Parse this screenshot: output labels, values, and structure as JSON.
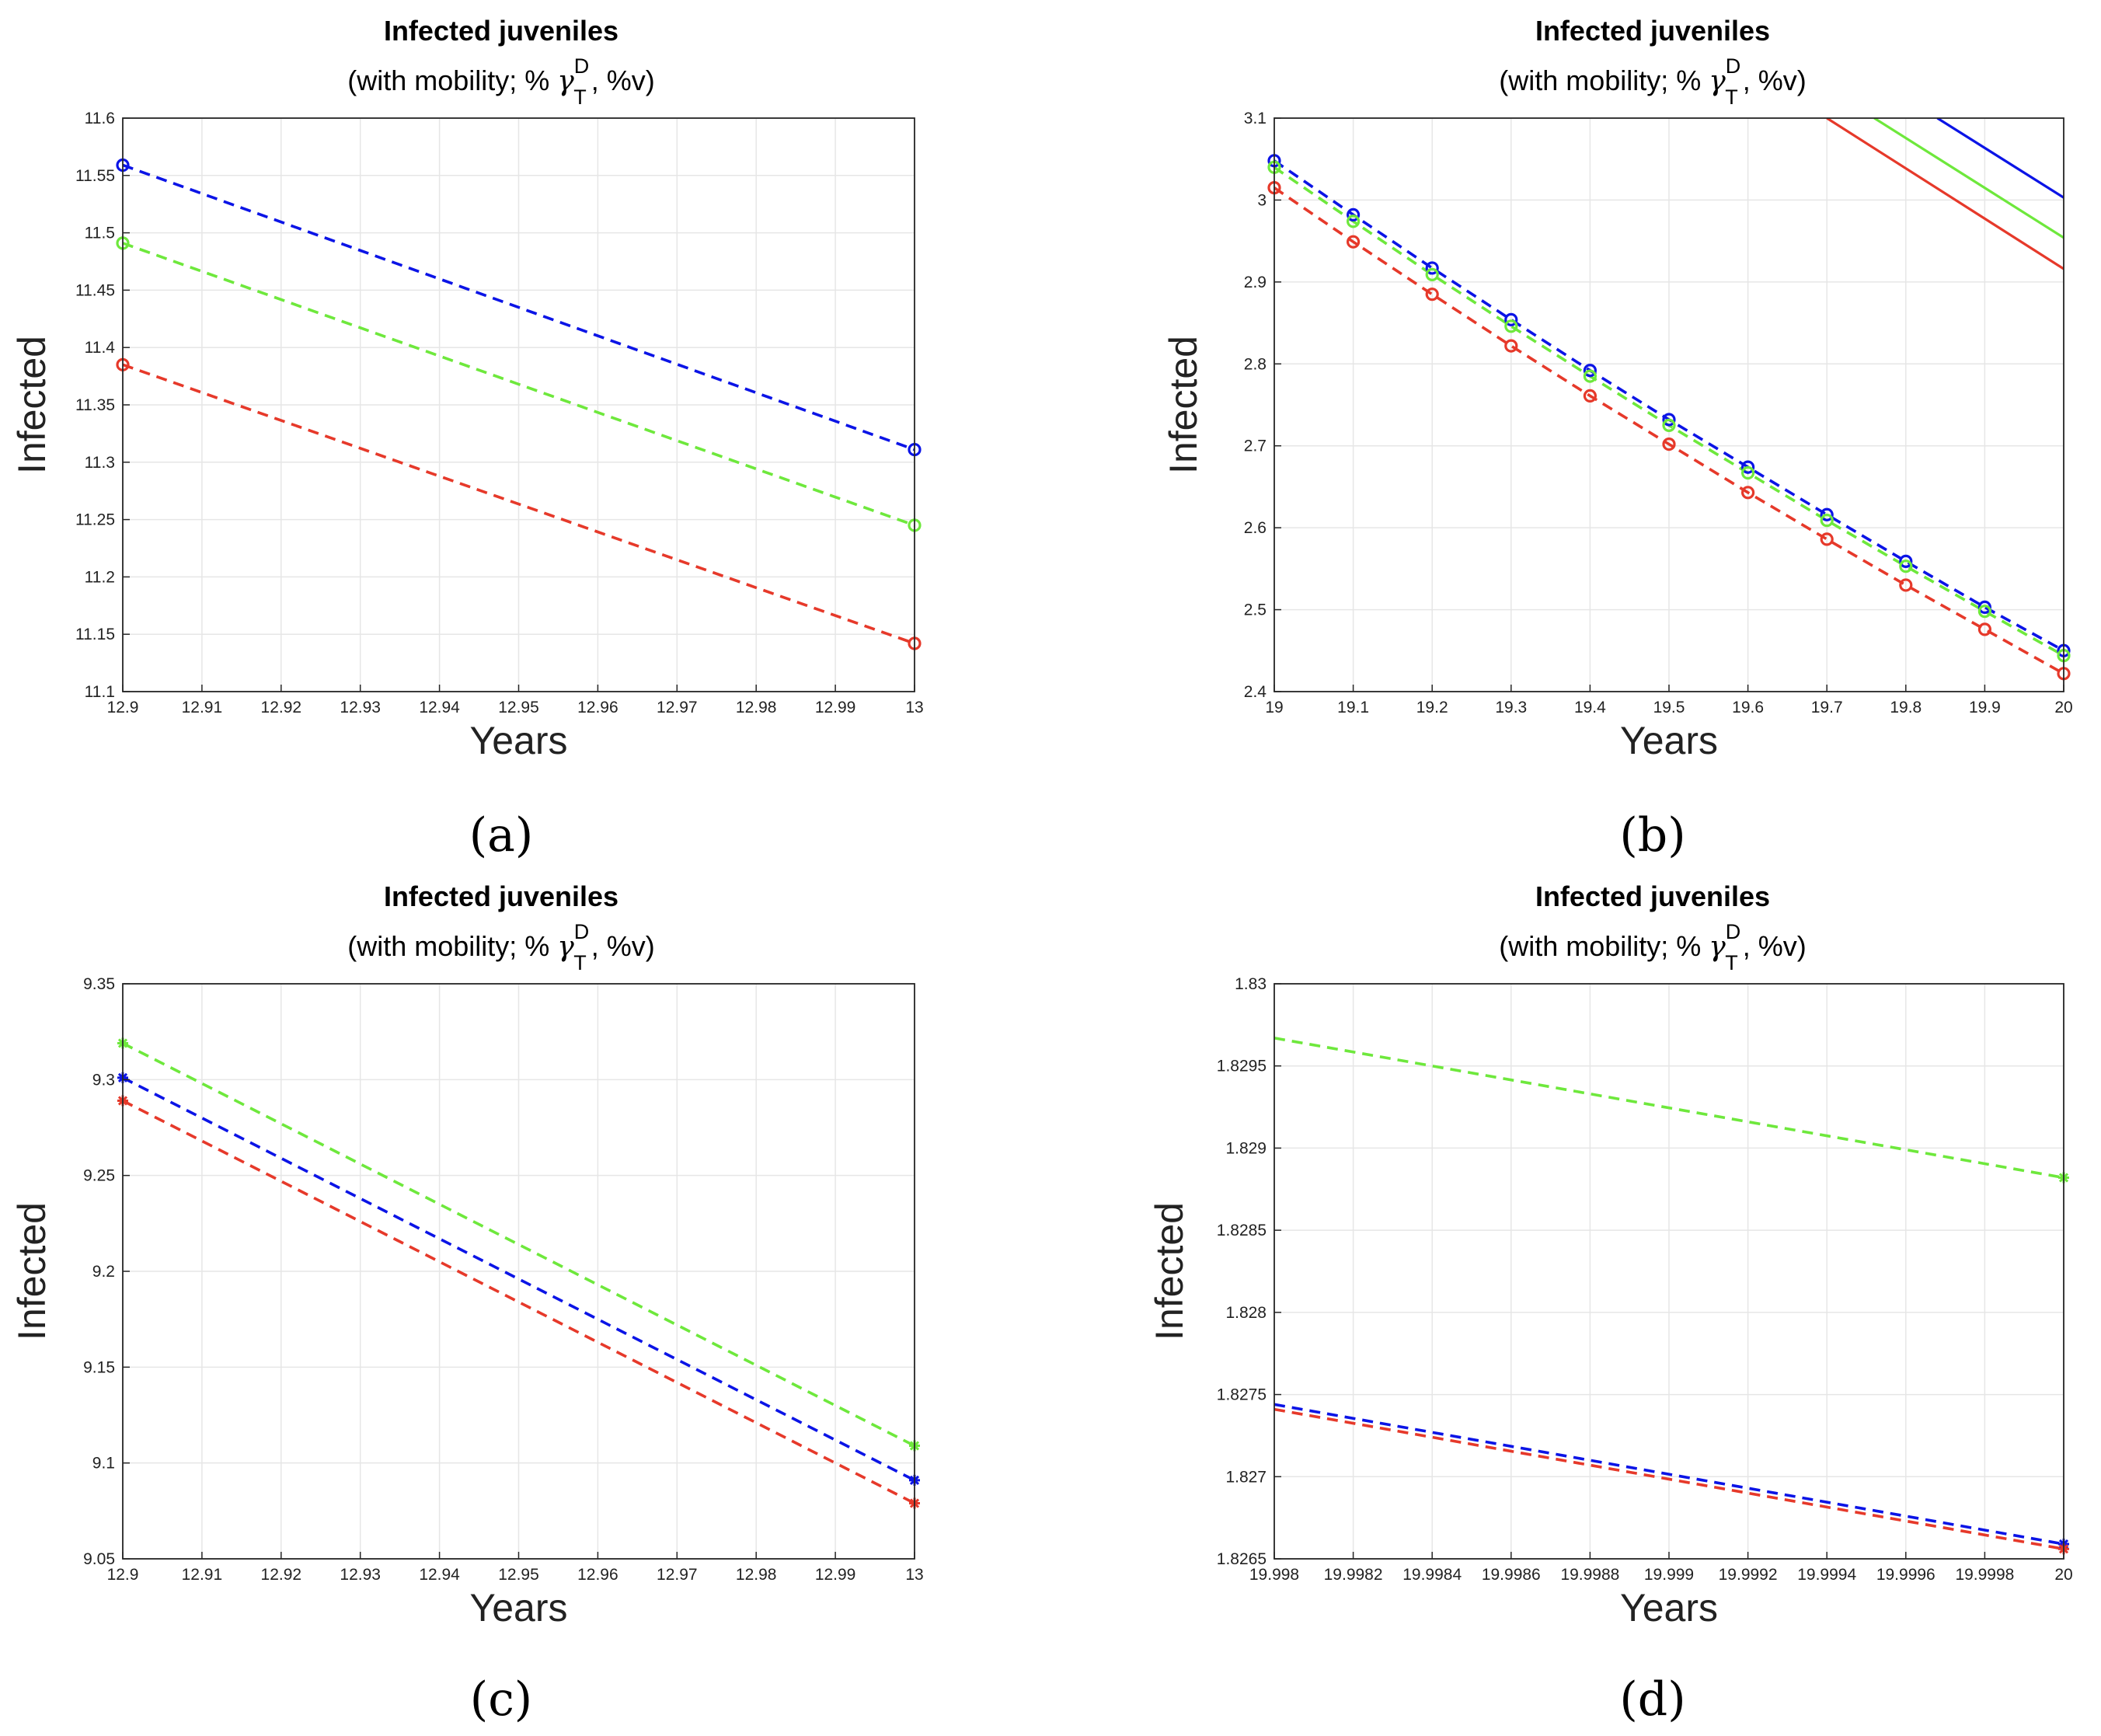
{
  "colors": {
    "blue": "#0b14e6",
    "green": "#6ee83c",
    "red": "#e6392a"
  },
  "chart_data": [
    {
      "id": "a",
      "type": "line",
      "caption": "(a)",
      "title": "Infected juveniles",
      "subtitle": [
        "(with mobility; %",
        "γ",
        "D",
        "T",
        ", %v)"
      ],
      "xlabel": "Years",
      "ylabel": "Infected",
      "xlim": [
        12.9,
        13
      ],
      "ylim": [
        11.1,
        11.6
      ],
      "xticks": [
        12.9,
        12.91,
        12.92,
        12.93,
        12.94,
        12.95,
        12.96,
        12.97,
        12.98,
        12.99,
        13
      ],
      "xticklabels": [
        "12.9",
        "12.91",
        "12.92",
        "12.93",
        "12.94",
        "12.95",
        "12.96",
        "12.97",
        "12.98",
        "12.99",
        "13"
      ],
      "yticks": [
        11.1,
        11.15,
        11.2,
        11.25,
        11.3,
        11.35,
        11.4,
        11.45,
        11.5,
        11.55,
        11.6
      ],
      "yticklabels": [
        "11.1",
        "11.15",
        "11.2",
        "11.25",
        "11.3",
        "11.35",
        "11.4",
        "11.45",
        "11.5",
        "11.55",
        "11.6"
      ],
      "series": [
        {
          "name": "blue",
          "color": "blue",
          "style": "dashed",
          "marker": "o",
          "x": [
            12.9,
            13
          ],
          "y": [
            11.559,
            11.311
          ],
          "marker_x": [
            12.9,
            13
          ]
        },
        {
          "name": "green",
          "color": "green",
          "style": "dashed",
          "marker": "o",
          "x": [
            12.9,
            13
          ],
          "y": [
            11.491,
            11.245
          ],
          "marker_x": [
            12.9,
            13
          ]
        },
        {
          "name": "red",
          "color": "red",
          "style": "dashed",
          "marker": "o",
          "x": [
            12.9,
            13
          ],
          "y": [
            11.385,
            11.142
          ],
          "marker_x": [
            12.9,
            13
          ]
        }
      ]
    },
    {
      "id": "b",
      "type": "line",
      "caption": "(b)",
      "title": "Infected juveniles",
      "subtitle": [
        "(with mobility; %",
        "γ",
        "D",
        "T",
        ", %v)"
      ],
      "xlabel": "Years",
      "ylabel": "Infected",
      "xlim": [
        19,
        20
      ],
      "ylim": [
        2.4,
        3.1
      ],
      "xticks": [
        19,
        19.1,
        19.2,
        19.3,
        19.4,
        19.5,
        19.6,
        19.7,
        19.8,
        19.9,
        20
      ],
      "xticklabels": [
        "19",
        "19.1",
        "19.2",
        "19.3",
        "19.4",
        "19.5",
        "19.6",
        "19.7",
        "19.8",
        "19.9",
        "20"
      ],
      "yticks": [
        2.4,
        2.5,
        2.6,
        2.7,
        2.8,
        2.9,
        3.0,
        3.1
      ],
      "yticklabels": [
        "2.4",
        "2.5",
        "2.6",
        "2.7",
        "2.8",
        "2.9",
        "3",
        "3.1"
      ],
      "series": [
        {
          "name": "blue-solid",
          "color": "blue",
          "style": "solid",
          "marker": "",
          "x": [
            19.84,
            20
          ],
          "y": [
            3.1,
            3.003
          ]
        },
        {
          "name": "green-solid",
          "color": "green",
          "style": "solid",
          "marker": "",
          "x": [
            19.76,
            20
          ],
          "y": [
            3.1,
            2.954
          ]
        },
        {
          "name": "red-solid",
          "color": "red",
          "style": "solid",
          "marker": "",
          "x": [
            19.7,
            20
          ],
          "y": [
            3.1,
            2.916
          ]
        },
        {
          "name": "blue",
          "color": "blue",
          "style": "dashed",
          "marker": "o",
          "x": [
            19,
            19.1,
            19.2,
            19.3,
            19.4,
            19.5,
            19.6,
            19.7,
            19.8,
            19.9,
            20
          ],
          "y": [
            3.048,
            2.982,
            2.917,
            2.854,
            2.792,
            2.732,
            2.674,
            2.616,
            2.559,
            2.503,
            2.45
          ],
          "marker_x": [
            19,
            19.1,
            19.2,
            19.3,
            19.4,
            19.5,
            19.6,
            19.7,
            19.8,
            19.9,
            20
          ]
        },
        {
          "name": "green",
          "color": "green",
          "style": "dashed",
          "marker": "o",
          "x": [
            19,
            19.1,
            19.2,
            19.3,
            19.4,
            19.5,
            19.6,
            19.7,
            19.8,
            19.9,
            20
          ],
          "y": [
            3.04,
            2.974,
            2.909,
            2.846,
            2.785,
            2.725,
            2.667,
            2.609,
            2.553,
            2.498,
            2.444
          ],
          "marker_x": [
            19,
            19.1,
            19.2,
            19.3,
            19.4,
            19.5,
            19.6,
            19.7,
            19.8,
            19.9,
            20
          ]
        },
        {
          "name": "red",
          "color": "red",
          "style": "dashed",
          "marker": "o",
          "x": [
            19,
            19.1,
            19.2,
            19.3,
            19.4,
            19.5,
            19.6,
            19.7,
            19.8,
            19.9,
            20
          ],
          "y": [
            3.015,
            2.949,
            2.885,
            2.822,
            2.761,
            2.702,
            2.643,
            2.586,
            2.53,
            2.476,
            2.422
          ],
          "marker_x": [
            19,
            19.1,
            19.2,
            19.3,
            19.4,
            19.5,
            19.6,
            19.7,
            19.8,
            19.9,
            20
          ]
        }
      ]
    },
    {
      "id": "c",
      "type": "line",
      "caption": "(c)",
      "title": "Infected juveniles",
      "subtitle": [
        "(with mobility; %",
        "γ",
        "D",
        "T",
        ", %v)"
      ],
      "xlabel": "Years",
      "ylabel": "Infected",
      "xlim": [
        12.9,
        13
      ],
      "ylim": [
        9.05,
        9.35
      ],
      "xticks": [
        12.9,
        12.91,
        12.92,
        12.93,
        12.94,
        12.95,
        12.96,
        12.97,
        12.98,
        12.99,
        13
      ],
      "xticklabels": [
        "12.9",
        "12.91",
        "12.92",
        "12.93",
        "12.94",
        "12.95",
        "12.96",
        "12.97",
        "12.98",
        "12.99",
        "13"
      ],
      "yticks": [
        9.05,
        9.1,
        9.15,
        9.2,
        9.25,
        9.3,
        9.35
      ],
      "yticklabels": [
        "9.05",
        "9.1",
        "9.15",
        "9.2",
        "9.25",
        "9.3",
        "9.35"
      ],
      "series": [
        {
          "name": "green",
          "color": "green",
          "style": "dashed",
          "marker": "*",
          "x": [
            12.9,
            13
          ],
          "y": [
            9.319,
            9.109
          ],
          "marker_x": [
            12.9,
            13
          ]
        },
        {
          "name": "blue",
          "color": "blue",
          "style": "dashed",
          "marker": "*",
          "x": [
            12.9,
            13
          ],
          "y": [
            9.301,
            9.091
          ],
          "marker_x": [
            12.9,
            13
          ]
        },
        {
          "name": "red",
          "color": "red",
          "style": "dashed",
          "marker": "*",
          "x": [
            12.9,
            13
          ],
          "y": [
            9.289,
            9.079
          ],
          "marker_x": [
            12.9,
            13
          ]
        }
      ]
    },
    {
      "id": "d",
      "type": "line",
      "caption": "(d)",
      "title": "Infected juveniles",
      "subtitle": [
        "(with mobility; %",
        "γ",
        "D",
        "T",
        ", %v)"
      ],
      "xlabel": "Years",
      "ylabel": "Infected",
      "xlim": [
        19.998,
        20
      ],
      "ylim": [
        1.8265,
        1.83
      ],
      "xticks": [
        19.998,
        19.9982,
        19.9984,
        19.9986,
        19.9988,
        19.999,
        19.9992,
        19.9994,
        19.9996,
        19.9998,
        20
      ],
      "xticklabels": [
        "19.998",
        "19.9982",
        "19.9984",
        "19.9986",
        "19.9988",
        "19.999",
        "19.9992",
        "19.9994",
        "19.9996",
        "19.9998",
        "20"
      ],
      "yticks": [
        1.8265,
        1.827,
        1.8275,
        1.828,
        1.8285,
        1.829,
        1.8295,
        1.83
      ],
      "yticklabels": [
        "1.8265",
        "1.827",
        "1.8275",
        "1.828",
        "1.8285",
        "1.829",
        "1.8295",
        "1.83"
      ],
      "series": [
        {
          "name": "green",
          "color": "green",
          "style": "dashed",
          "marker": "*",
          "x": [
            19.998,
            20
          ],
          "y": [
            1.82967,
            1.82882
          ],
          "marker_x": [
            20
          ]
        },
        {
          "name": "blue",
          "color": "blue",
          "style": "dashed",
          "marker": "*",
          "x": [
            19.998,
            20
          ],
          "y": [
            1.82744,
            1.82659
          ],
          "marker_x": [
            20
          ]
        },
        {
          "name": "red",
          "color": "red",
          "style": "dashed",
          "marker": "*",
          "x": [
            19.998,
            20
          ],
          "y": [
            1.82741,
            1.82656
          ],
          "marker_x": [
            20
          ]
        }
      ]
    }
  ]
}
